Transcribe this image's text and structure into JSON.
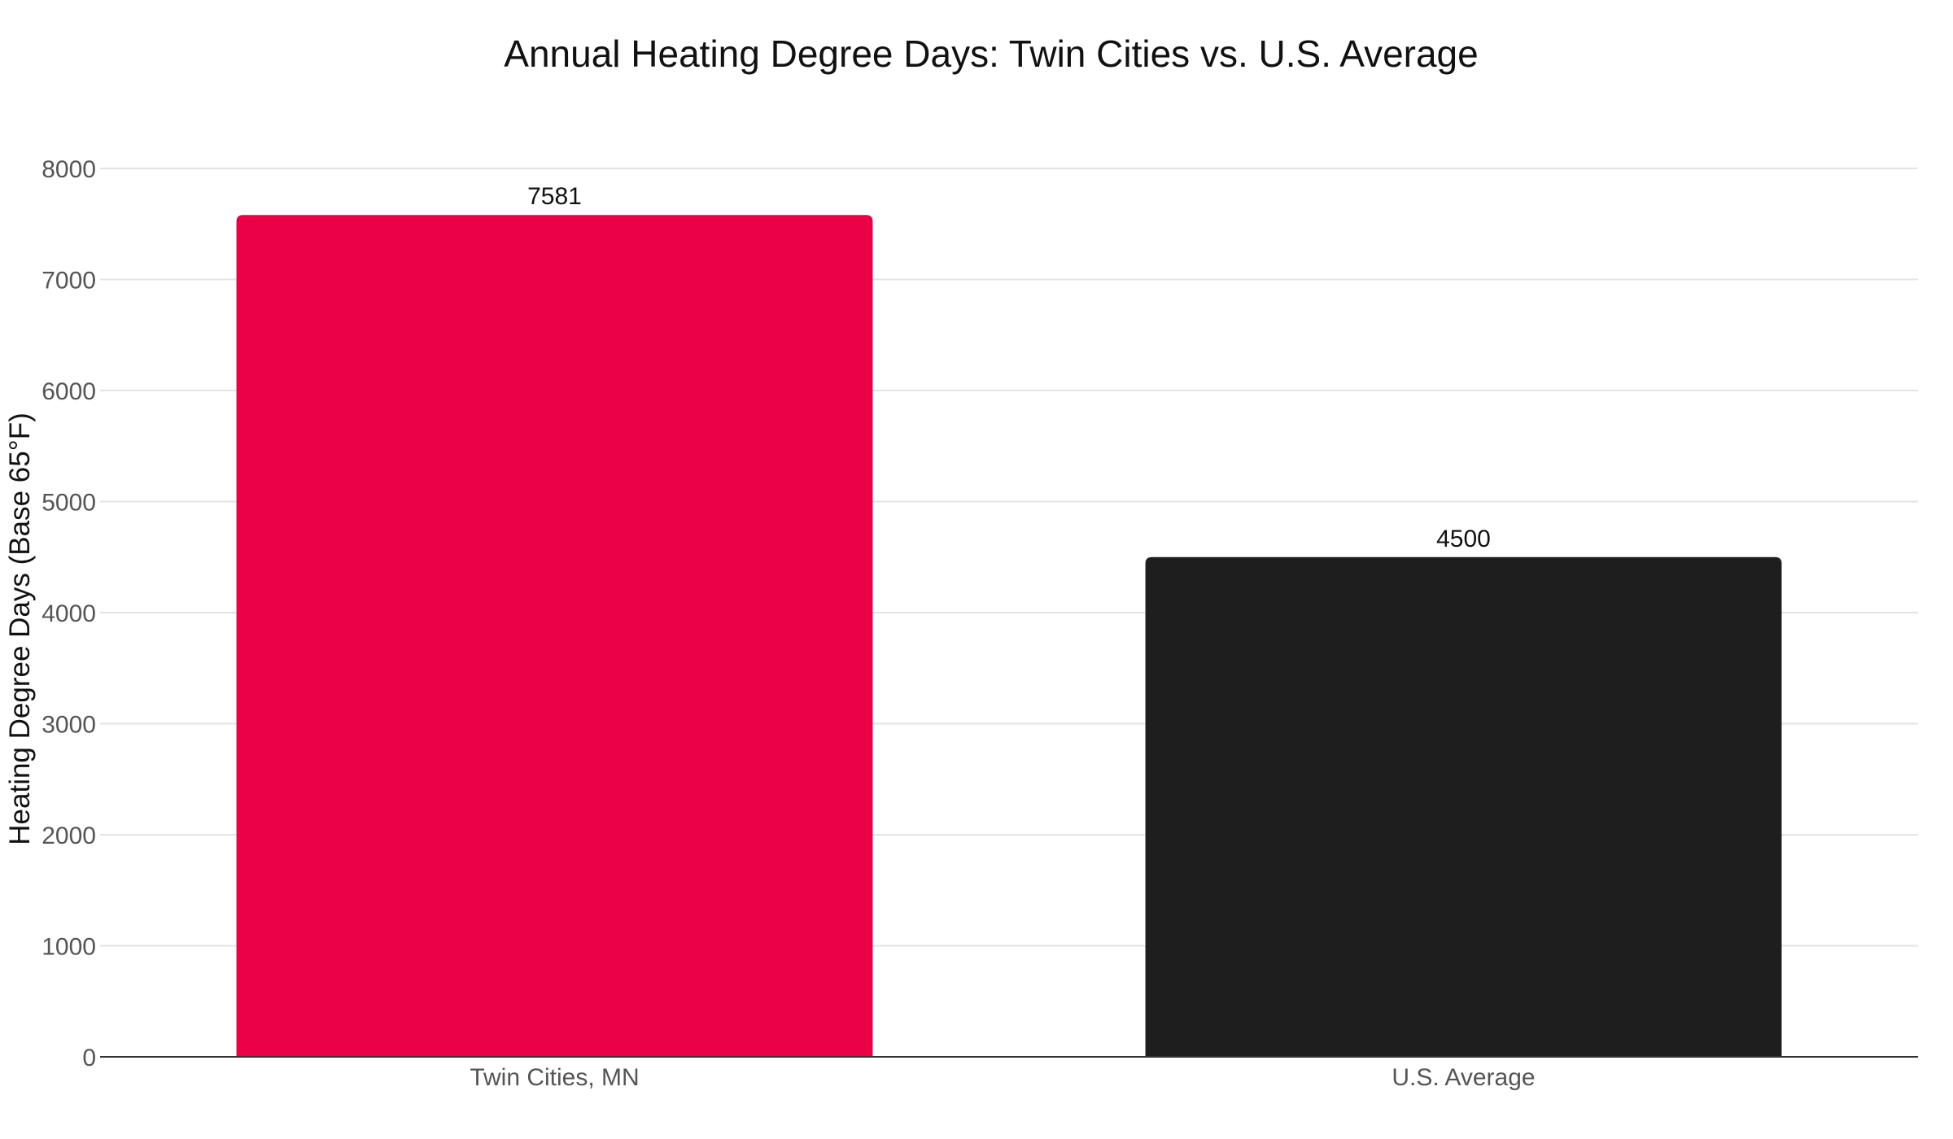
{
  "chart_data": {
    "type": "bar",
    "title": "Annual Heating Degree Days: Twin Cities vs. U.S. Average",
    "xlabel": "",
    "ylabel": "Heating Degree Days (Base 65°F)",
    "categories": [
      "Twin Cities, MN",
      "U.S. Average"
    ],
    "values": [
      7581,
      4500
    ],
    "data_labels": [
      "7581",
      "4500"
    ],
    "colors": [
      "#eb0246",
      "#1e1e1e"
    ],
    "ylim": [
      0,
      8000
    ],
    "yticks": [
      0,
      1000,
      2000,
      3000,
      4000,
      5000,
      6000,
      7000,
      8000
    ],
    "ytick_labels": [
      "0",
      "1000",
      "2000",
      "3000",
      "4000",
      "5000",
      "6000",
      "7000",
      "8000"
    ],
    "grid": true,
    "legend": "none"
  }
}
